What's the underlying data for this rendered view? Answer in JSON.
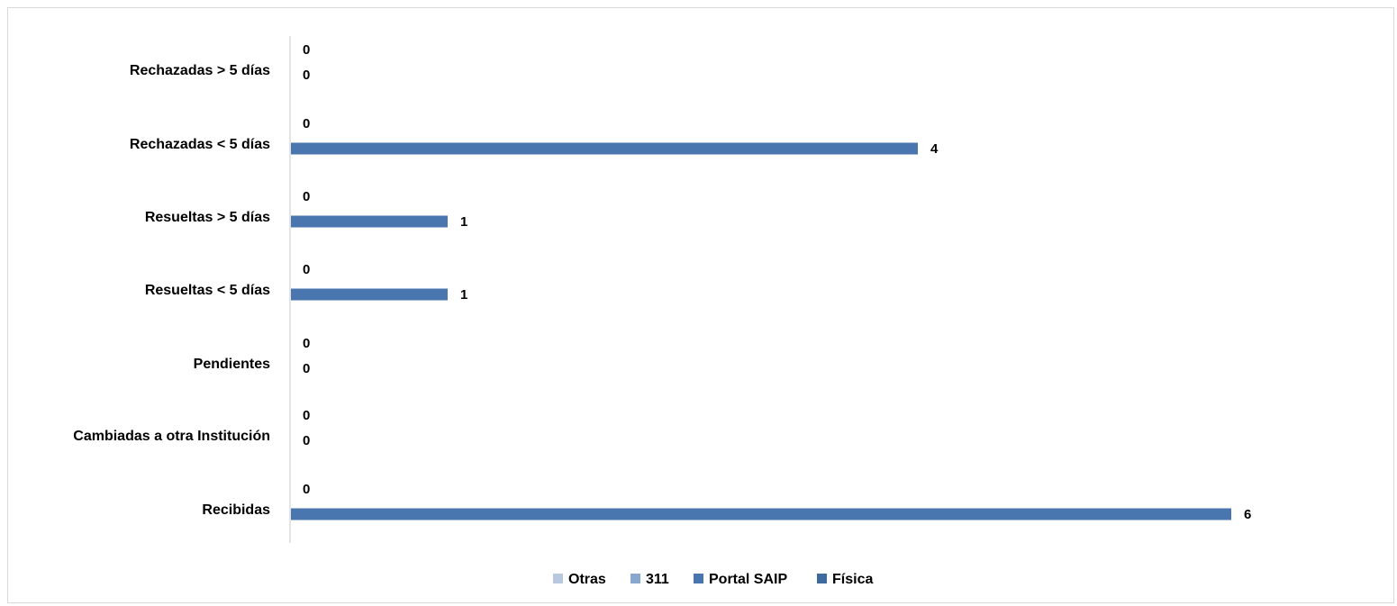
{
  "chart_data": {
    "type": "bar",
    "orientation": "horizontal",
    "categories": [
      "Recibidas",
      "Cambiadas a otra Institución",
      "Pendientes",
      "Resueltas < 5 días",
      "Resueltas > 5 días",
      "Rechazadas  < 5 días",
      "Rechazadas  > 5 días"
    ],
    "series": [
      {
        "name": "Portal SAIP",
        "values": [
          6,
          0,
          0,
          1,
          1,
          4,
          0
        ],
        "color": "#4a76b0"
      },
      {
        "name": "Física",
        "values": [
          0,
          0,
          0,
          0,
          0,
          0,
          0
        ],
        "color": "#3f6a9e"
      }
    ],
    "xlim": [
      0,
      6
    ],
    "grid": false,
    "legend": {
      "placement": "bottom",
      "entries": [
        {
          "name": "Otras",
          "color": "#b8c8de"
        },
        {
          "name": "311",
          "color": "#8aa7cf"
        },
        {
          "name": "Portal SAIP",
          "color": "#4a76b0"
        },
        {
          "name": "Física",
          "color": "#3f6a9e"
        }
      ]
    },
    "data_labels": true
  }
}
